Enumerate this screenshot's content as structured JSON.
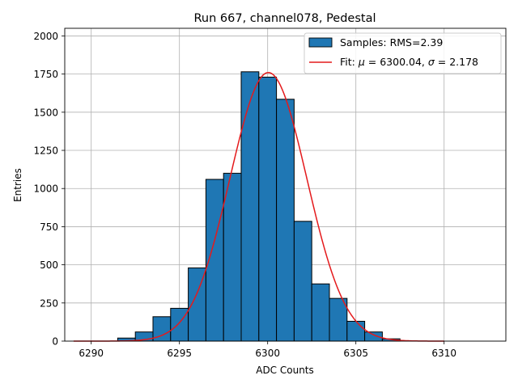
{
  "chart_data": {
    "type": "bar",
    "title": "Run 667, channel078, Pedestal",
    "xlabel": "ADC Counts",
    "ylabel": "Entries",
    "xlim": [
      6288.5,
      6313.5
    ],
    "ylim": [
      0,
      2050
    ],
    "grid": true,
    "legend_position": "top-right",
    "xticks": [
      6290,
      6295,
      6300,
      6305,
      6310
    ],
    "yticks": [
      0,
      250,
      500,
      750,
      1000,
      1250,
      1500,
      1750,
      2000
    ],
    "bin_width": 1,
    "bins": [
      {
        "x": 6292,
        "count": 20
      },
      {
        "x": 6293,
        "count": 60
      },
      {
        "x": 6294,
        "count": 160
      },
      {
        "x": 6295,
        "count": 215
      },
      {
        "x": 6296,
        "count": 480
      },
      {
        "x": 6297,
        "count": 1060
      },
      {
        "x": 6298,
        "count": 1100
      },
      {
        "x": 6299,
        "count": 1765
      },
      {
        "x": 6300,
        "count": 1730
      },
      {
        "x": 6301,
        "count": 1585
      },
      {
        "x": 6302,
        "count": 785
      },
      {
        "x": 6303,
        "count": 375
      },
      {
        "x": 6304,
        "count": 280
      },
      {
        "x": 6305,
        "count": 130
      },
      {
        "x": 6306,
        "count": 60
      },
      {
        "x": 6307,
        "count": 15
      }
    ],
    "fit": {
      "mu": 6300.04,
      "sigma": 2.178,
      "amplitude": 1760,
      "x_range": [
        6289,
        6310
      ]
    },
    "legend": {
      "samples": "Samples: RMS=2.39",
      "fit_prefix": "Fit: ",
      "mu_symbol": "μ",
      "mu_text": " = 6300.04, ",
      "sigma_symbol": "σ",
      "sigma_text": " = 2.178"
    },
    "colors": {
      "bar": "#1f77b4",
      "fit": "#e41a1c",
      "grid": "#b0b0b0"
    }
  }
}
